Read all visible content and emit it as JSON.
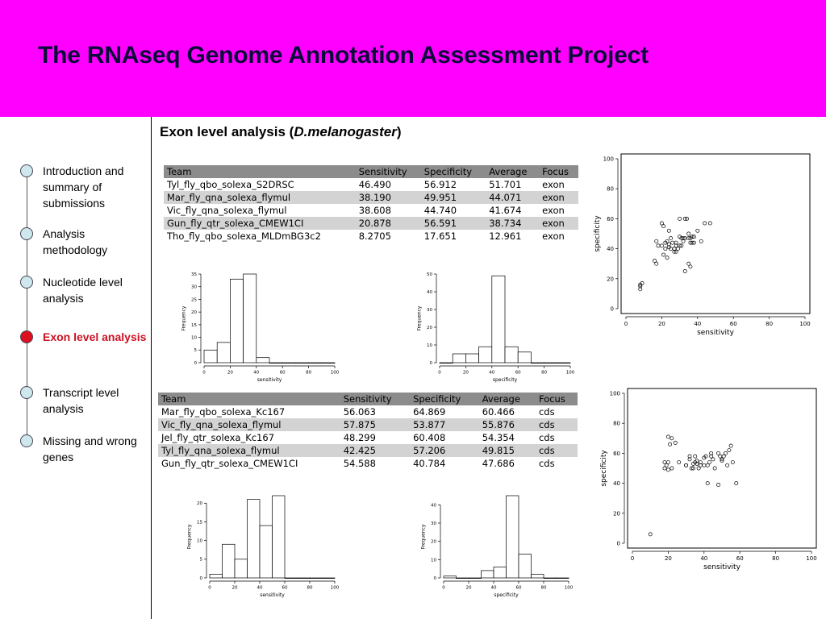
{
  "title": "The RNAseq Genome Annotation Assessment Project",
  "section": {
    "title_prefix": "Exon level analysis (",
    "title_species": "D.melanogaster",
    "title_suffix": ")"
  },
  "nav": {
    "items": [
      {
        "label": "Introduction and summary of submissions",
        "active": false
      },
      {
        "label": "Analysis methodology",
        "active": false
      },
      {
        "label": "Nucleotide level analysis",
        "active": false
      },
      {
        "label": "Exon level analysis",
        "active": true
      },
      {
        "label": "Transcript level analysis",
        "active": false
      },
      {
        "label": "Missing and wrong genes",
        "active": false
      }
    ]
  },
  "colors": {
    "header_bg": "#ff00ff",
    "active_nav": "#cc1122",
    "nav_dot": "#cfe8ee"
  },
  "tables": {
    "exon": {
      "headers": [
        "Team",
        "Sensitivity",
        "Specificity",
        "Average",
        "Focus"
      ],
      "rows": [
        [
          "Tyl_fly_qbo_solexa_S2DRSC",
          "46.490",
          "56.912",
          "51.701",
          "exon"
        ],
        [
          "Mar_fly_qna_solexa_flymul",
          "38.190",
          "49.951",
          "44.071",
          "exon"
        ],
        [
          "Vic_fly_qna_solexa_flymul",
          "38.608",
          "44.740",
          "41.674",
          "exon"
        ],
        [
          "Gun_fly_qtr_solexa_CMEW1CI",
          "20.878",
          "56.591",
          "38.734",
          "exon"
        ],
        [
          "Tho_fly_qbo_solexa_MLDmBG3c2",
          "8.2705",
          "17.651",
          "12.961",
          "exon"
        ]
      ]
    },
    "cds": {
      "headers": [
        "Team",
        "Sensitivity",
        "Specificity",
        "Average",
        "Focus"
      ],
      "rows": [
        [
          "Mar_fly_qbo_solexa_Kc167",
          "56.063",
          "64.869",
          "60.466",
          "cds"
        ],
        [
          "Vic_fly_qna_solexa_flymul",
          "57.875",
          "53.877",
          "55.876",
          "cds"
        ],
        [
          "Jel_fly_qtr_solexa_Kc167",
          "48.299",
          "60.408",
          "54.354",
          "cds"
        ],
        [
          "Tyl_fly_qna_solexa_flymul",
          "42.425",
          "57.206",
          "49.815",
          "cds"
        ],
        [
          "Gun_fly_qtr_solexa_CMEW1CI",
          "54.588",
          "40.784",
          "47.686",
          "cds"
        ]
      ]
    }
  },
  "chart_data": [
    {
      "id": "hist-exon-sens",
      "type": "bar",
      "xlabel": "sensitivity",
      "ylabel": "Frequency",
      "bin_edges": [
        0,
        10,
        20,
        30,
        40,
        50,
        60,
        70,
        80,
        90,
        100
      ],
      "values": [
        5,
        8,
        33,
        35,
        2,
        0,
        0,
        0,
        0,
        0
      ],
      "xlim": [
        0,
        100
      ],
      "ylim": [
        0,
        35
      ],
      "xticks": [
        0,
        20,
        40,
        60,
        80,
        100
      ],
      "yticks": [
        0,
        5,
        10,
        15,
        20,
        25,
        30,
        35
      ]
    },
    {
      "id": "hist-exon-spec",
      "type": "bar",
      "xlabel": "specificity",
      "ylabel": "Frequency",
      "bin_edges": [
        0,
        10,
        20,
        30,
        40,
        50,
        60,
        70,
        80,
        90,
        100
      ],
      "values": [
        0,
        5,
        5,
        9,
        49,
        9,
        6,
        0,
        0,
        0
      ],
      "xlim": [
        0,
        100
      ],
      "ylim": [
        0,
        50
      ],
      "xticks": [
        0,
        20,
        40,
        60,
        80,
        100
      ],
      "yticks": [
        0,
        10,
        20,
        30,
        40,
        50
      ]
    },
    {
      "id": "scatter-exon",
      "type": "scatter",
      "xlabel": "sensitivity",
      "ylabel": "specificity",
      "xlim": [
        0,
        100
      ],
      "ylim": [
        0,
        100
      ],
      "xticks": [
        0,
        20,
        40,
        60,
        80,
        100
      ],
      "yticks": [
        0,
        20,
        40,
        60,
        80,
        100
      ],
      "x": [
        8,
        8,
        9,
        8,
        16,
        17,
        20,
        21,
        22,
        23,
        25,
        24,
        26,
        28,
        28,
        30,
        30,
        31,
        32,
        33,
        34,
        35,
        36,
        37,
        38,
        17,
        20,
        22,
        24,
        25,
        27,
        29,
        30,
        32,
        33,
        35,
        36,
        38,
        40,
        42,
        44,
        47,
        21,
        23,
        27,
        31,
        33,
        35,
        37,
        18,
        24,
        28,
        36
      ],
      "y": [
        13,
        15,
        17,
        16,
        32,
        30,
        57,
        55,
        44,
        45,
        47,
        52,
        44,
        44,
        38,
        60,
        48,
        42,
        45,
        60,
        60,
        50,
        47,
        48,
        44,
        45,
        42,
        40,
        43,
        40,
        40,
        40,
        42,
        47,
        25,
        30,
        28,
        48,
        52,
        45,
        57,
        57,
        36,
        34,
        38,
        47,
        47,
        47,
        44,
        42,
        41,
        42,
        44
      ]
    },
    {
      "id": "hist-cds-sens",
      "type": "bar",
      "xlabel": "sensitivity",
      "ylabel": "Frequency",
      "bin_edges": [
        0,
        10,
        20,
        30,
        40,
        50,
        60,
        70,
        80,
        90,
        100
      ],
      "values": [
        1,
        9,
        5,
        21,
        14,
        22,
        0,
        0,
        0,
        0
      ],
      "xlim": [
        0,
        100
      ],
      "ylim": [
        0,
        22
      ],
      "xticks": [
        0,
        20,
        40,
        60,
        80,
        100
      ],
      "yticks": [
        0,
        5,
        10,
        15,
        20
      ]
    },
    {
      "id": "hist-cds-spec",
      "type": "bar",
      "xlabel": "specificity",
      "ylabel": "Frequency",
      "bin_edges": [
        0,
        10,
        20,
        30,
        40,
        50,
        60,
        70,
        80,
        90,
        100
      ],
      "values": [
        1,
        0,
        0,
        4,
        6,
        45,
        13,
        2,
        0,
        0
      ],
      "xlim": [
        0,
        100
      ],
      "ylim": [
        0,
        45
      ],
      "xticks": [
        0,
        20,
        40,
        60,
        80,
        100
      ],
      "yticks": [
        0,
        10,
        20,
        30,
        40
      ]
    },
    {
      "id": "scatter-cds",
      "type": "scatter",
      "xlabel": "sensitivity",
      "ylabel": "specificity",
      "xlim": [
        0,
        100
      ],
      "ylim": [
        0,
        100
      ],
      "xticks": [
        0,
        20,
        40,
        60,
        80,
        100
      ],
      "yticks": [
        0,
        20,
        40,
        60,
        80,
        100
      ],
      "x": [
        10,
        18,
        18,
        19,
        20,
        20,
        21,
        22,
        24,
        26,
        30,
        32,
        32,
        33,
        34,
        35,
        35,
        36,
        37,
        38,
        40,
        41,
        42,
        43,
        44,
        45,
        46,
        48,
        49,
        50,
        50,
        51,
        52,
        53,
        54,
        55,
        56,
        58,
        48,
        42,
        38,
        34,
        44,
        30,
        36,
        40,
        22,
        20
      ],
      "y": [
        6,
        50,
        54,
        52,
        49,
        71,
        66,
        70,
        67,
        54,
        52,
        58,
        56,
        50,
        50,
        54,
        58,
        55,
        50,
        52,
        57,
        58,
        52,
        54,
        58,
        56,
        50,
        60,
        58,
        55,
        56,
        58,
        60,
        52,
        62,
        65,
        54,
        40,
        39,
        40,
        54,
        53,
        60,
        52,
        53,
        52,
        50,
        54
      ]
    }
  ]
}
